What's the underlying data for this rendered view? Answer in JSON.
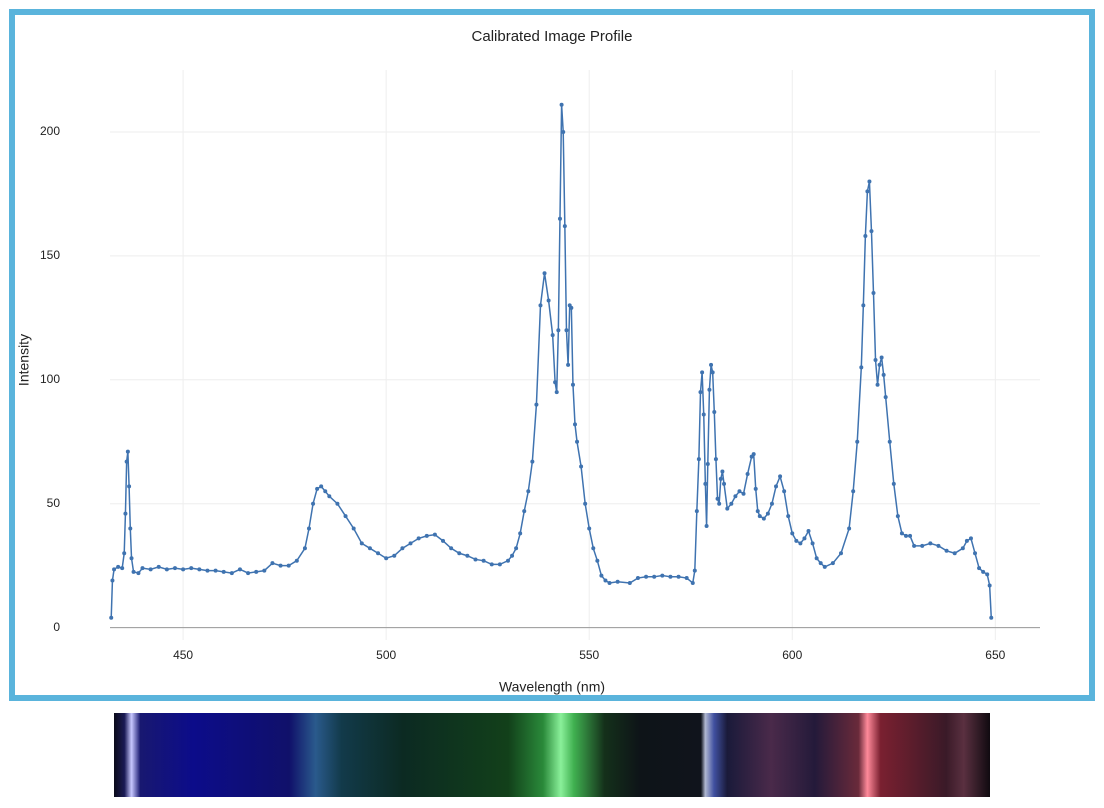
{
  "chart_data": {
    "type": "line",
    "title": "Calibrated Image Profile",
    "x_label": "Wavelength (nm)",
    "y_label": "Intensity",
    "color": "#3f73b0",
    "markers": true,
    "grid": true,
    "xlim": [
      432,
      661
    ],
    "ylim": [
      -5,
      225
    ],
    "xticks": [
      450,
      500,
      550,
      600,
      650
    ],
    "yticks": [
      0,
      50,
      100,
      150,
      200
    ],
    "x": [
      432.3,
      432.6,
      433,
      434,
      435,
      435.5,
      435.8,
      436.1,
      436.4,
      436.7,
      437,
      437.3,
      437.8,
      439,
      440,
      442,
      444,
      446,
      448,
      450,
      452,
      454,
      456,
      458,
      460,
      462,
      464,
      466,
      468,
      470,
      472,
      474,
      476,
      478,
      480,
      481,
      482,
      483,
      484,
      485,
      486,
      488,
      490,
      492,
      494,
      496,
      498,
      500,
      502,
      504,
      506,
      508,
      510,
      512,
      514,
      516,
      518,
      520,
      522,
      524,
      526,
      528,
      530,
      531,
      532,
      533,
      534,
      535,
      536,
      537,
      538,
      539,
      540,
      541,
      541.6,
      542,
      542.4,
      542.8,
      543.2,
      543.6,
      544,
      544.4,
      544.8,
      545.2,
      545.6,
      546,
      546.5,
      547,
      548,
      549,
      550,
      551,
      552,
      553,
      554,
      555,
      557,
      560,
      562,
      564,
      566,
      568,
      570,
      572,
      574,
      575.5,
      576,
      576.5,
      577,
      577.4,
      577.8,
      578.2,
      578.6,
      578.9,
      579.2,
      579.6,
      580,
      580.4,
      580.8,
      581.2,
      581.6,
      582,
      582.4,
      582.8,
      583.2,
      584,
      585,
      586,
      587,
      588,
      589,
      590,
      590.5,
      591,
      591.5,
      592,
      593,
      594,
      595,
      596,
      597,
      598,
      599,
      600,
      601,
      602,
      603,
      604,
      605,
      606,
      607,
      608,
      610,
      612,
      614,
      615,
      616,
      617,
      617.5,
      618,
      618.5,
      619,
      619.5,
      620,
      620.5,
      621,
      621.5,
      622,
      622.5,
      623,
      624,
      625,
      626,
      627,
      628,
      629,
      630,
      632,
      634,
      636,
      638,
      640,
      642,
      643,
      644,
      645,
      646,
      647,
      648,
      648.6,
      649
    ],
    "values": [
      4,
      19,
      23.5,
      24.5,
      24,
      30,
      46,
      67,
      71,
      57,
      40,
      28,
      22.5,
      22,
      24,
      23.5,
      24.5,
      23.5,
      24,
      23.5,
      24,
      23.5,
      23,
      23,
      22.5,
      22,
      23.5,
      22,
      22.5,
      23,
      26,
      25,
      25,
      27,
      32,
      40,
      50,
      56,
      57,
      55,
      53,
      50,
      45,
      40,
      34,
      32,
      30,
      28,
      29,
      32,
      34,
      36,
      37,
      37.5,
      35,
      32,
      30,
      29,
      27.5,
      27,
      25.5,
      25.5,
      27,
      29,
      32,
      38,
      47,
      55,
      67,
      90,
      130,
      143,
      132,
      118,
      99,
      95,
      120,
      165,
      211,
      200,
      162,
      120,
      106,
      130,
      129,
      98,
      82,
      75,
      65,
      50,
      40,
      32,
      27,
      21,
      19,
      18,
      18.5,
      18,
      20,
      20.5,
      20.5,
      21,
      20.5,
      20.5,
      20,
      18,
      23,
      47,
      68,
      95,
      103,
      86,
      58,
      41,
      66,
      96,
      106,
      103,
      87,
      68,
      52,
      50,
      60,
      63,
      58,
      48,
      50,
      53,
      55,
      54,
      62,
      69,
      70,
      56,
      47,
      45,
      44,
      46,
      50,
      57,
      61,
      55,
      45,
      38,
      35,
      34,
      36,
      39,
      34,
      28,
      26,
      24.5,
      26,
      30,
      40,
      55,
      75,
      105,
      130,
      158,
      176,
      180,
      160,
      135,
      108,
      98,
      106,
      109,
      102,
      93,
      75,
      58,
      45,
      38,
      37,
      37,
      33,
      33,
      34,
      33,
      31,
      30,
      32,
      35,
      36,
      30,
      24,
      22.5,
      21.5,
      17,
      4
    ]
  }
}
